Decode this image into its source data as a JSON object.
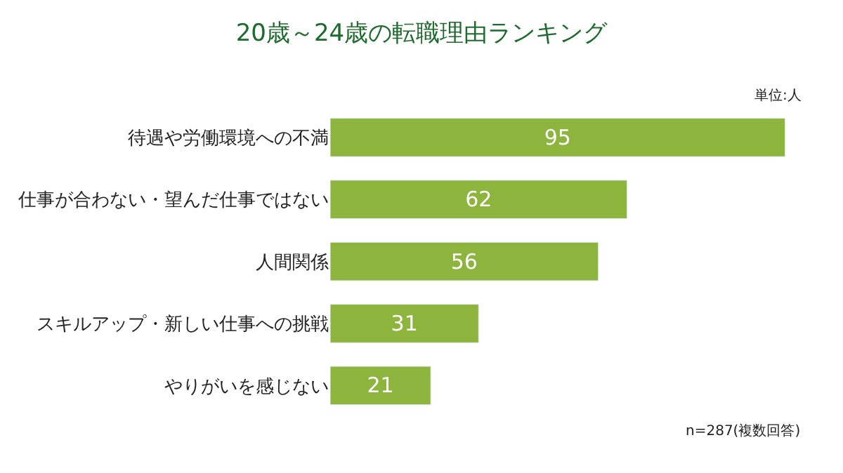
{
  "chart_data": {
    "type": "bar",
    "orientation": "horizontal",
    "title": "20歳～24歳の転職理由ランキング",
    "categories": [
      "待遇や労働環境への不満",
      "仕事が合わない・望んだ仕事ではない",
      "人間関係",
      "スキルアップ・新しい仕事への挑戦",
      "やりがいを感じない"
    ],
    "values": [
      95,
      62,
      56,
      31,
      21
    ],
    "color": "#8db43c",
    "data_labels": true,
    "legend": false,
    "annotations": [
      "単位:人",
      "n=287(複数回答)"
    ]
  }
}
